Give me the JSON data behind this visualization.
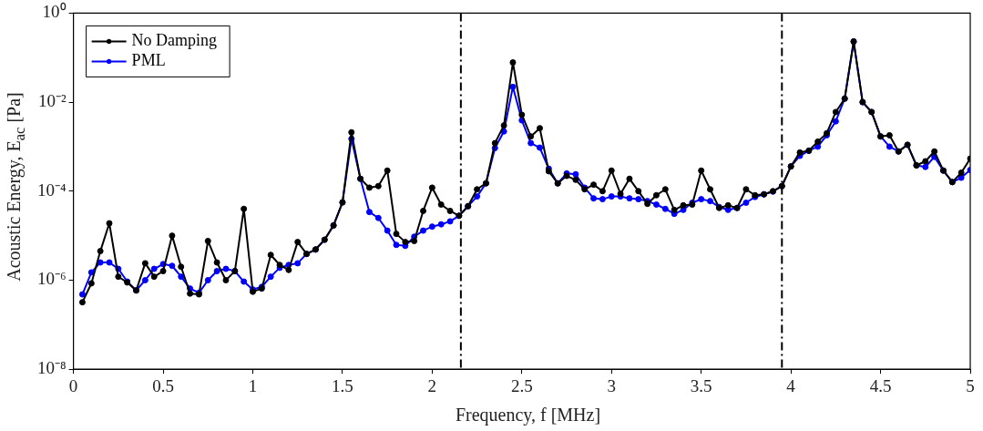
{
  "chart_data": {
    "type": "line",
    "xlabel": "Frequency, f [MHz]",
    "ylabel": "Acoustic Energy, E$_{ac}$ [Pa]",
    "x": [
      0.05,
      0.1,
      0.15,
      0.2,
      0.25,
      0.3,
      0.35,
      0.4,
      0.45,
      0.5,
      0.55,
      0.6,
      0.65,
      0.7,
      0.75,
      0.8,
      0.85,
      0.9,
      0.95,
      1.0,
      1.05,
      1.1,
      1.15,
      1.2,
      1.25,
      1.3,
      1.35,
      1.4,
      1.45,
      1.5,
      1.55,
      1.6,
      1.65,
      1.7,
      1.75,
      1.8,
      1.85,
      1.9,
      1.95,
      2.0,
      2.05,
      2.1,
      2.15,
      2.2,
      2.25,
      2.3,
      2.35,
      2.4,
      2.45,
      2.5,
      2.55,
      2.6,
      2.65,
      2.7,
      2.75,
      2.8,
      2.85,
      2.9,
      2.95,
      3.0,
      3.05,
      3.1,
      3.15,
      3.2,
      3.25,
      3.3,
      3.35,
      3.4,
      3.45,
      3.5,
      3.55,
      3.6,
      3.65,
      3.7,
      3.75,
      3.8,
      3.85,
      3.9,
      3.95,
      4.0,
      4.05,
      4.1,
      4.15,
      4.2,
      4.25,
      4.3,
      4.35,
      4.4,
      4.45,
      4.5,
      4.55,
      4.6,
      4.65,
      4.7,
      4.75,
      4.8,
      4.85,
      4.9,
      4.95,
      5.0
    ],
    "series": [
      {
        "name": "No Damping",
        "color": "#000000",
        "values": [
          3.2e-07,
          8.5e-07,
          4.5e-06,
          1.9e-05,
          1.2e-06,
          8.9e-07,
          5.9e-07,
          2.4e-06,
          1.2e-06,
          1.6e-06,
          1e-05,
          2e-06,
          5e-07,
          4.8e-07,
          7.6e-06,
          2.5e-06,
          1e-06,
          1.6e-06,
          4e-05,
          5.5e-07,
          6.5e-07,
          3.7e-06,
          2.2e-06,
          1.7e-06,
          7.2e-06,
          3.9e-06,
          4.9e-06,
          8.1e-06,
          1.7e-05,
          5.6e-05,
          0.0021,
          0.00019,
          0.00012,
          0.00013,
          0.00029,
          1.1e-05,
          7.2e-06,
          7.6e-06,
          3.6e-05,
          0.00012,
          5e-05,
          3.6e-05,
          2.8e-05,
          4.6e-05,
          0.00011,
          0.00015,
          0.0012,
          0.003,
          0.078,
          0.0052,
          0.0017,
          0.0026,
          0.00028,
          0.00015,
          0.00022,
          0.00018,
          0.00011,
          0.00014,
          0.0001,
          0.00029,
          8.7e-05,
          0.00019,
          0.0001,
          5.2e-05,
          8.1e-05,
          0.00011,
          3.8e-05,
          4.8e-05,
          5e-05,
          0.00029,
          0.00011,
          4.2e-05,
          4.8e-05,
          4.2e-05,
          0.00011,
          8.1e-05,
          8.5e-05,
          0.0001,
          0.00013,
          0.00036,
          0.00074,
          0.00081,
          0.0013,
          0.002,
          0.006,
          0.012,
          0.23,
          0.01,
          0.006,
          0.0017,
          0.0018,
          0.00078,
          0.0011,
          0.00038,
          0.00047,
          0.00078,
          0.00029,
          0.00016,
          0.00026,
          0.00054
        ]
      },
      {
        "name": "PML",
        "color": "#0000ff",
        "values": [
          4.8e-07,
          1.5e-06,
          2.5e-06,
          2.5e-06,
          1.8e-06,
          9.3e-07,
          5.9e-07,
          1e-06,
          1.8e-06,
          2.3e-06,
          2.1e-06,
          1.2e-06,
          6.5e-07,
          5.2e-07,
          1e-06,
          1.6e-06,
          1.8e-06,
          1.6e-06,
          9.3e-07,
          6.2e-07,
          7.1e-07,
          1.2e-06,
          1.9e-06,
          2.2e-06,
          2.4e-06,
          3.9e-06,
          4.9e-06,
          8.1e-06,
          1.7e-05,
          5.6e-05,
          0.0015,
          0.00019,
          3.4e-05,
          2.5e-05,
          1.3e-05,
          6.2e-06,
          5.9e-06,
          9.5e-06,
          1.3e-05,
          1.6e-05,
          1.8e-05,
          2.1e-05,
          2.8e-05,
          4.6e-05,
          7.6e-05,
          0.00015,
          0.00093,
          0.0022,
          0.022,
          0.0039,
          0.0012,
          0.00095,
          0.00032,
          0.00015,
          0.00025,
          0.00024,
          0.00012,
          6.9e-05,
          6.6e-05,
          7.6e-05,
          7.6e-05,
          6.9e-05,
          6.6e-05,
          6e-05,
          5e-05,
          4e-05,
          3.1e-05,
          3.8e-05,
          5.5e-05,
          6.6e-05,
          6e-05,
          4.4e-05,
          3.8e-05,
          4.2e-05,
          5.5e-05,
          7.4e-05,
          8.5e-05,
          9.8e-05,
          0.00013,
          0.00036,
          0.00062,
          0.00081,
          0.001,
          0.0018,
          0.0037,
          0.012,
          0.23,
          0.01,
          0.006,
          0.0017,
          0.001,
          0.00078,
          0.0011,
          0.00038,
          0.00035,
          0.00059,
          0.00029,
          0.00016,
          0.0002,
          0.0003
        ]
      }
    ],
    "xlim": [
      0,
      5
    ],
    "xticks": [
      0,
      0.5,
      1,
      1.5,
      2,
      2.5,
      3,
      3.5,
      4,
      4.5,
      5
    ],
    "ylim": [
      1e-08,
      1
    ],
    "yticks": [
      {
        "value": 1e-08,
        "label": "10⁻⁸"
      },
      {
        "value": 1e-06,
        "label": "10⁻⁶"
      },
      {
        "value": 0.0001,
        "label": "10⁻⁴"
      },
      {
        "value": 0.01,
        "label": "10⁻²"
      },
      {
        "value": 1,
        "label": "10⁰"
      }
    ],
    "log": "y",
    "grid": false,
    "legend": "top left",
    "marker": "circle",
    "line_style": "solid",
    "ref_lines": [
      {
        "axis": "x",
        "value": 2.16,
        "color": "#000000"
      },
      {
        "axis": "x",
        "value": 3.95,
        "color": "#000000"
      }
    ]
  }
}
